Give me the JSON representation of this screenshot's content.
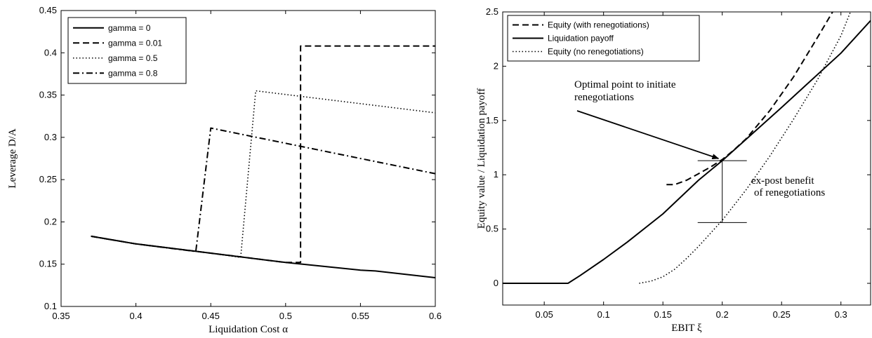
{
  "chart_data": [
    {
      "type": "line",
      "xlabel": "Liquidation Cost α",
      "ylabel": "Leverage D/A",
      "xlim": [
        0.35,
        0.6
      ],
      "ylim": [
        0.1,
        0.45
      ],
      "xticks": [
        0.35,
        0.4,
        0.45,
        0.5,
        0.55,
        0.6
      ],
      "yticks": [
        0.1,
        0.15,
        0.2,
        0.25,
        0.3,
        0.35,
        0.4,
        0.45
      ],
      "xtick_labels": [
        "0.35",
        "0.4",
        "0.45",
        "0.5",
        "0.55",
        "0.6"
      ],
      "ytick_labels": [
        "0.1",
        "0.15",
        "0.2",
        "0.25",
        "0.3",
        "0.35",
        "0.4",
        "0.45"
      ],
      "grid": false,
      "legend": "top-left",
      "series": [
        {
          "name": "gamma = 0",
          "style": "solid",
          "x": [
            0.37,
            0.4,
            0.45,
            0.5,
            0.55,
            0.56,
            0.6
          ],
          "y": [
            0.183,
            0.174,
            0.163,
            0.152,
            0.143,
            0.142,
            0.134
          ]
        },
        {
          "name": "gamma = 0.01",
          "style": "dashed",
          "x": [
            0.37,
            0.4,
            0.45,
            0.5,
            0.5,
            0.51,
            0.51,
            0.6
          ],
          "y": [
            0.183,
            0.174,
            0.163,
            0.152,
            0.152,
            0.152,
            0.408,
            0.408
          ]
        },
        {
          "name": "gamma = 0.5",
          "style": "dotted",
          "x": [
            0.37,
            0.4,
            0.45,
            0.47,
            0.48,
            0.6
          ],
          "y": [
            0.183,
            0.174,
            0.163,
            0.158,
            0.355,
            0.329
          ]
        },
        {
          "name": "gamma = 0.8",
          "style": "dashdot",
          "x": [
            0.37,
            0.4,
            0.44,
            0.45,
            0.6
          ],
          "y": [
            0.183,
            0.174,
            0.165,
            0.311,
            0.257
          ]
        }
      ]
    },
    {
      "type": "line",
      "xlabel": "EBIT ξ",
      "ylabel": "Equity value / Liquidation payoff",
      "xlim": [
        0.015,
        0.325
      ],
      "ylim": [
        -0.2,
        2.5
      ],
      "xticks": [
        0.05,
        0.1,
        0.15,
        0.2,
        0.25,
        0.3
      ],
      "yticks": [
        0,
        0.5,
        1,
        1.5,
        2,
        2.5
      ],
      "xtick_labels": [
        "0.05",
        "0.1",
        "0.15",
        "0.2",
        "0.25",
        "0.3"
      ],
      "ytick_labels": [
        "0",
        "0.5",
        "1",
        "1.5",
        "2",
        "2.5"
      ],
      "grid": false,
      "legend": "top-left",
      "series": [
        {
          "name": "Equity (with renegotiations)",
          "style": "dashed",
          "x": [
            0.153,
            0.16,
            0.17,
            0.18,
            0.19,
            0.2,
            0.21,
            0.22,
            0.24,
            0.26,
            0.28,
            0.293
          ],
          "y": [
            0.91,
            0.91,
            0.95,
            1.01,
            1.07,
            1.14,
            1.23,
            1.33,
            1.59,
            1.9,
            2.26,
            2.5
          ]
        },
        {
          "name": "Liquidation payoff",
          "style": "solid",
          "x": [
            0.015,
            0.07,
            0.08,
            0.1,
            0.12,
            0.15,
            0.18,
            0.2,
            0.25,
            0.3,
            0.325
          ],
          "y": [
            0.0,
            0.0,
            0.07,
            0.22,
            0.38,
            0.64,
            0.95,
            1.13,
            1.62,
            2.12,
            2.42
          ]
        },
        {
          "name": "Equity (no renegotiations)",
          "style": "dotted",
          "x": [
            0.13,
            0.14,
            0.15,
            0.16,
            0.17,
            0.18,
            0.19,
            0.2,
            0.22,
            0.24,
            0.26,
            0.28,
            0.3,
            0.308
          ],
          "y": [
            0.0,
            0.02,
            0.06,
            0.13,
            0.23,
            0.34,
            0.46,
            0.58,
            0.86,
            1.17,
            1.51,
            1.87,
            2.28,
            2.5
          ]
        }
      ],
      "annotations": {
        "arrow_text": [
          "Optimal point to initiate",
          "renegotiations"
        ],
        "arrow_target": [
          0.198,
          1.13
        ],
        "benefit_text": [
          "ex-post benefit",
          "of renegotiations"
        ],
        "benefit_x": 0.2,
        "benefit_range": [
          0.56,
          1.13
        ]
      }
    }
  ]
}
